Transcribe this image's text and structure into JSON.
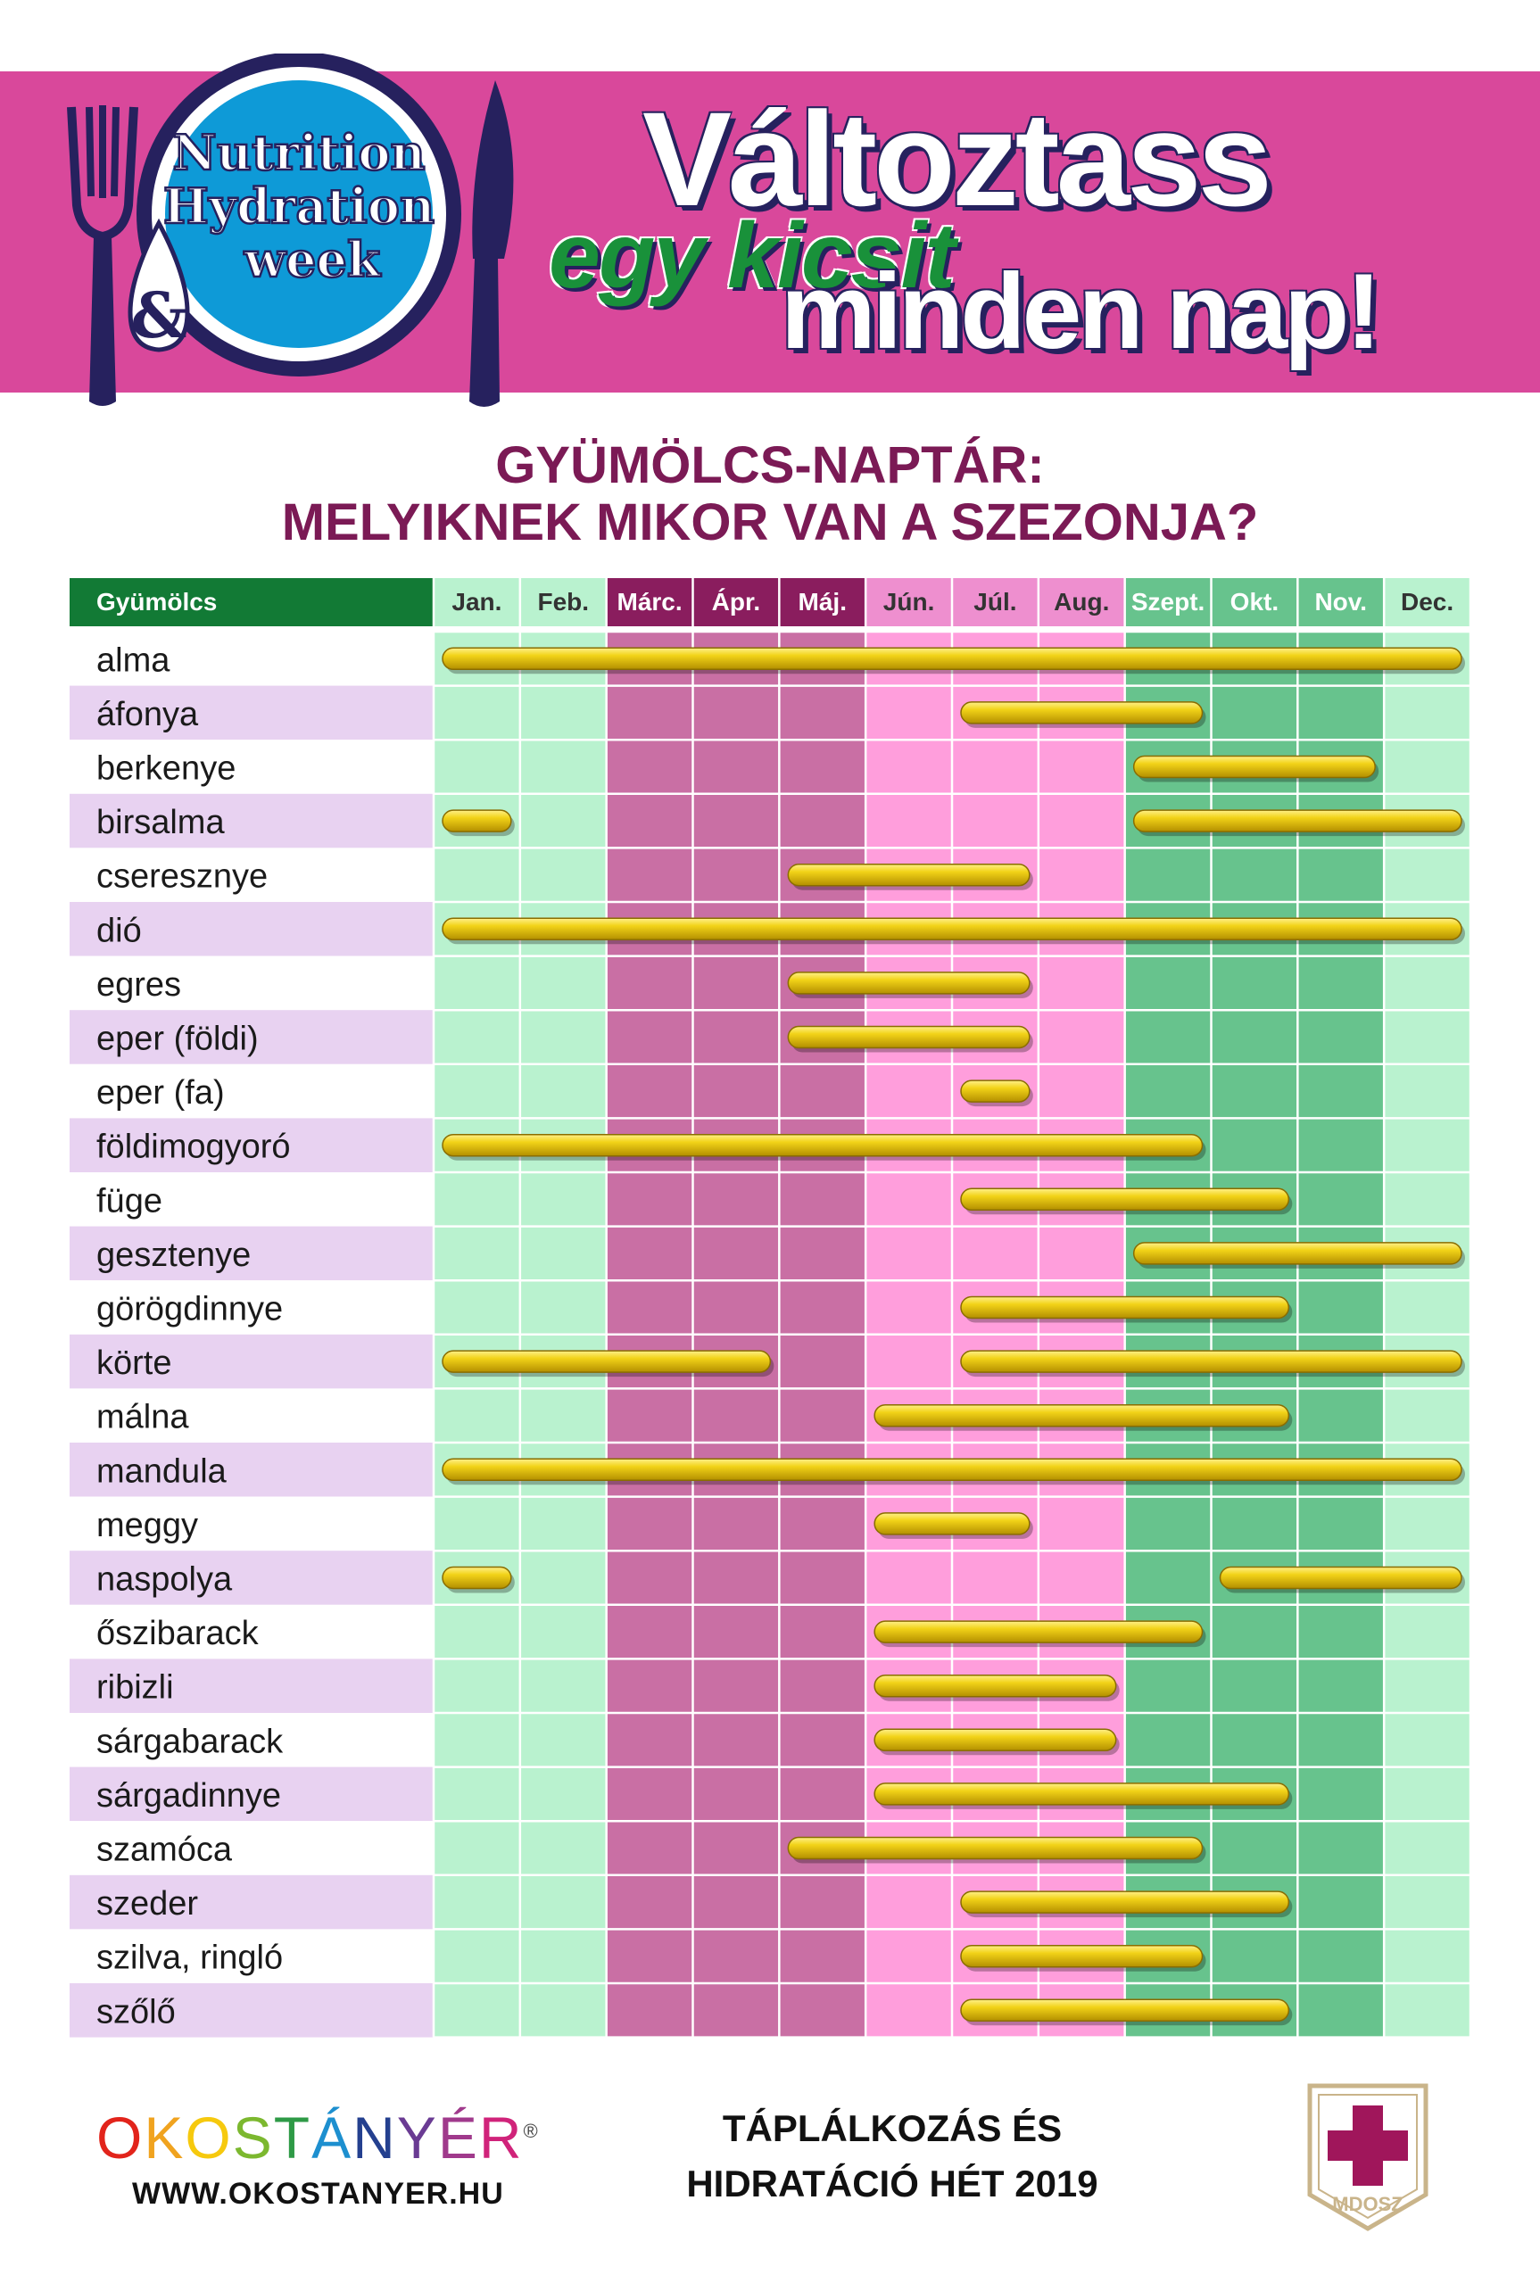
{
  "header": {
    "logo_line1": "Nutrition",
    "logo_line2": "Hydration",
    "logo_amp": "&",
    "logo_line3": "week",
    "headline_line1": "Változtass",
    "headline_line2": "egy kicsit",
    "headline_line3": "minden nap!"
  },
  "title": {
    "line1": "GYÜMÖLCS-NAPTÁR:",
    "line2": "MELYIKNEK MIKOR VAN A SZEZONJA?"
  },
  "chart_data": {
    "type": "table",
    "first_column_label": "Gyümölcs",
    "months": [
      "Jan.",
      "Feb.",
      "Márc.",
      "Ápr.",
      "Máj.",
      "Jún.",
      "Júl.",
      "Aug.",
      "Szept.",
      "Okt.",
      "Nov.",
      "Dec."
    ],
    "fruits": [
      {
        "name": "alma",
        "seasons": [
          [
            1,
            12
          ]
        ]
      },
      {
        "name": "áfonya",
        "seasons": [
          [
            7,
            9
          ]
        ]
      },
      {
        "name": "berkenye",
        "seasons": [
          [
            9,
            11
          ]
        ]
      },
      {
        "name": "birsalma",
        "seasons": [
          [
            1,
            1
          ],
          [
            9,
            12
          ]
        ]
      },
      {
        "name": "cseresznye",
        "seasons": [
          [
            5,
            7
          ]
        ]
      },
      {
        "name": "dió",
        "seasons": [
          [
            1,
            12
          ]
        ]
      },
      {
        "name": "egres",
        "seasons": [
          [
            5,
            7
          ]
        ]
      },
      {
        "name": "eper (földi)",
        "seasons": [
          [
            5,
            7
          ]
        ]
      },
      {
        "name": "eper (fa)",
        "seasons": [
          [
            7,
            7
          ]
        ]
      },
      {
        "name": "földimogyoró",
        "seasons": [
          [
            1,
            9
          ]
        ]
      },
      {
        "name": "füge",
        "seasons": [
          [
            7,
            10
          ]
        ]
      },
      {
        "name": "gesztenye",
        "seasons": [
          [
            9,
            12
          ]
        ]
      },
      {
        "name": "görögdinnye",
        "seasons": [
          [
            7,
            10
          ]
        ]
      },
      {
        "name": "körte",
        "seasons": [
          [
            1,
            4
          ],
          [
            7,
            12
          ]
        ]
      },
      {
        "name": "málna",
        "seasons": [
          [
            6,
            10
          ]
        ]
      },
      {
        "name": "mandula",
        "seasons": [
          [
            1,
            12
          ]
        ]
      },
      {
        "name": "meggy",
        "seasons": [
          [
            6,
            7
          ]
        ]
      },
      {
        "name": "naspolya",
        "seasons": [
          [
            1,
            1
          ],
          [
            10,
            12
          ]
        ]
      },
      {
        "name": "őszibarack",
        "seasons": [
          [
            6,
            9
          ]
        ]
      },
      {
        "name": "ribizli",
        "seasons": [
          [
            6,
            8
          ]
        ]
      },
      {
        "name": "sárgabarack",
        "seasons": [
          [
            6,
            8
          ]
        ]
      },
      {
        "name": "sárgadinnye",
        "seasons": [
          [
            6,
            10
          ]
        ]
      },
      {
        "name": "szamóca",
        "seasons": [
          [
            5,
            9
          ]
        ]
      },
      {
        "name": "szeder",
        "seasons": [
          [
            7,
            10
          ]
        ]
      },
      {
        "name": "szilva, ringló",
        "seasons": [
          [
            7,
            9
          ]
        ]
      },
      {
        "name": "szőlő",
        "seasons": [
          [
            7,
            10
          ]
        ]
      }
    ]
  },
  "colors": {
    "banner": "#d9489b",
    "header_green": "#127a35",
    "header_plum": "#8a1d5e",
    "header_pink": "#ee8fcf",
    "light_green": "#b9f2cf",
    "plum": "#c96fa4",
    "pink": "#ff9edc",
    "dark_green": "#67c38d",
    "row_lilac": "#e8d2f1",
    "bar_gold": "#e3c10a",
    "title_color": "#7b1a55"
  },
  "footer": {
    "brand_letters": [
      "O",
      "K",
      "O",
      "S",
      "T",
      "Á",
      "N",
      "Y",
      "É",
      "R"
    ],
    "brand_colors": [
      "#e2241b",
      "#f0a31f",
      "#f6c90e",
      "#7cb82f",
      "#2e9a46",
      "#1d8fcf",
      "#24408f",
      "#6a3b93",
      "#a03a8c",
      "#d0237a"
    ],
    "brand_mark": "®",
    "url": "WWW.OKOSTANYER.HU",
    "event_line1": "TÁPLÁLKOZÁS ÉS",
    "event_line2": "HIDRATÁCIÓ HÉT 2019",
    "badge": "MDOSZ"
  }
}
